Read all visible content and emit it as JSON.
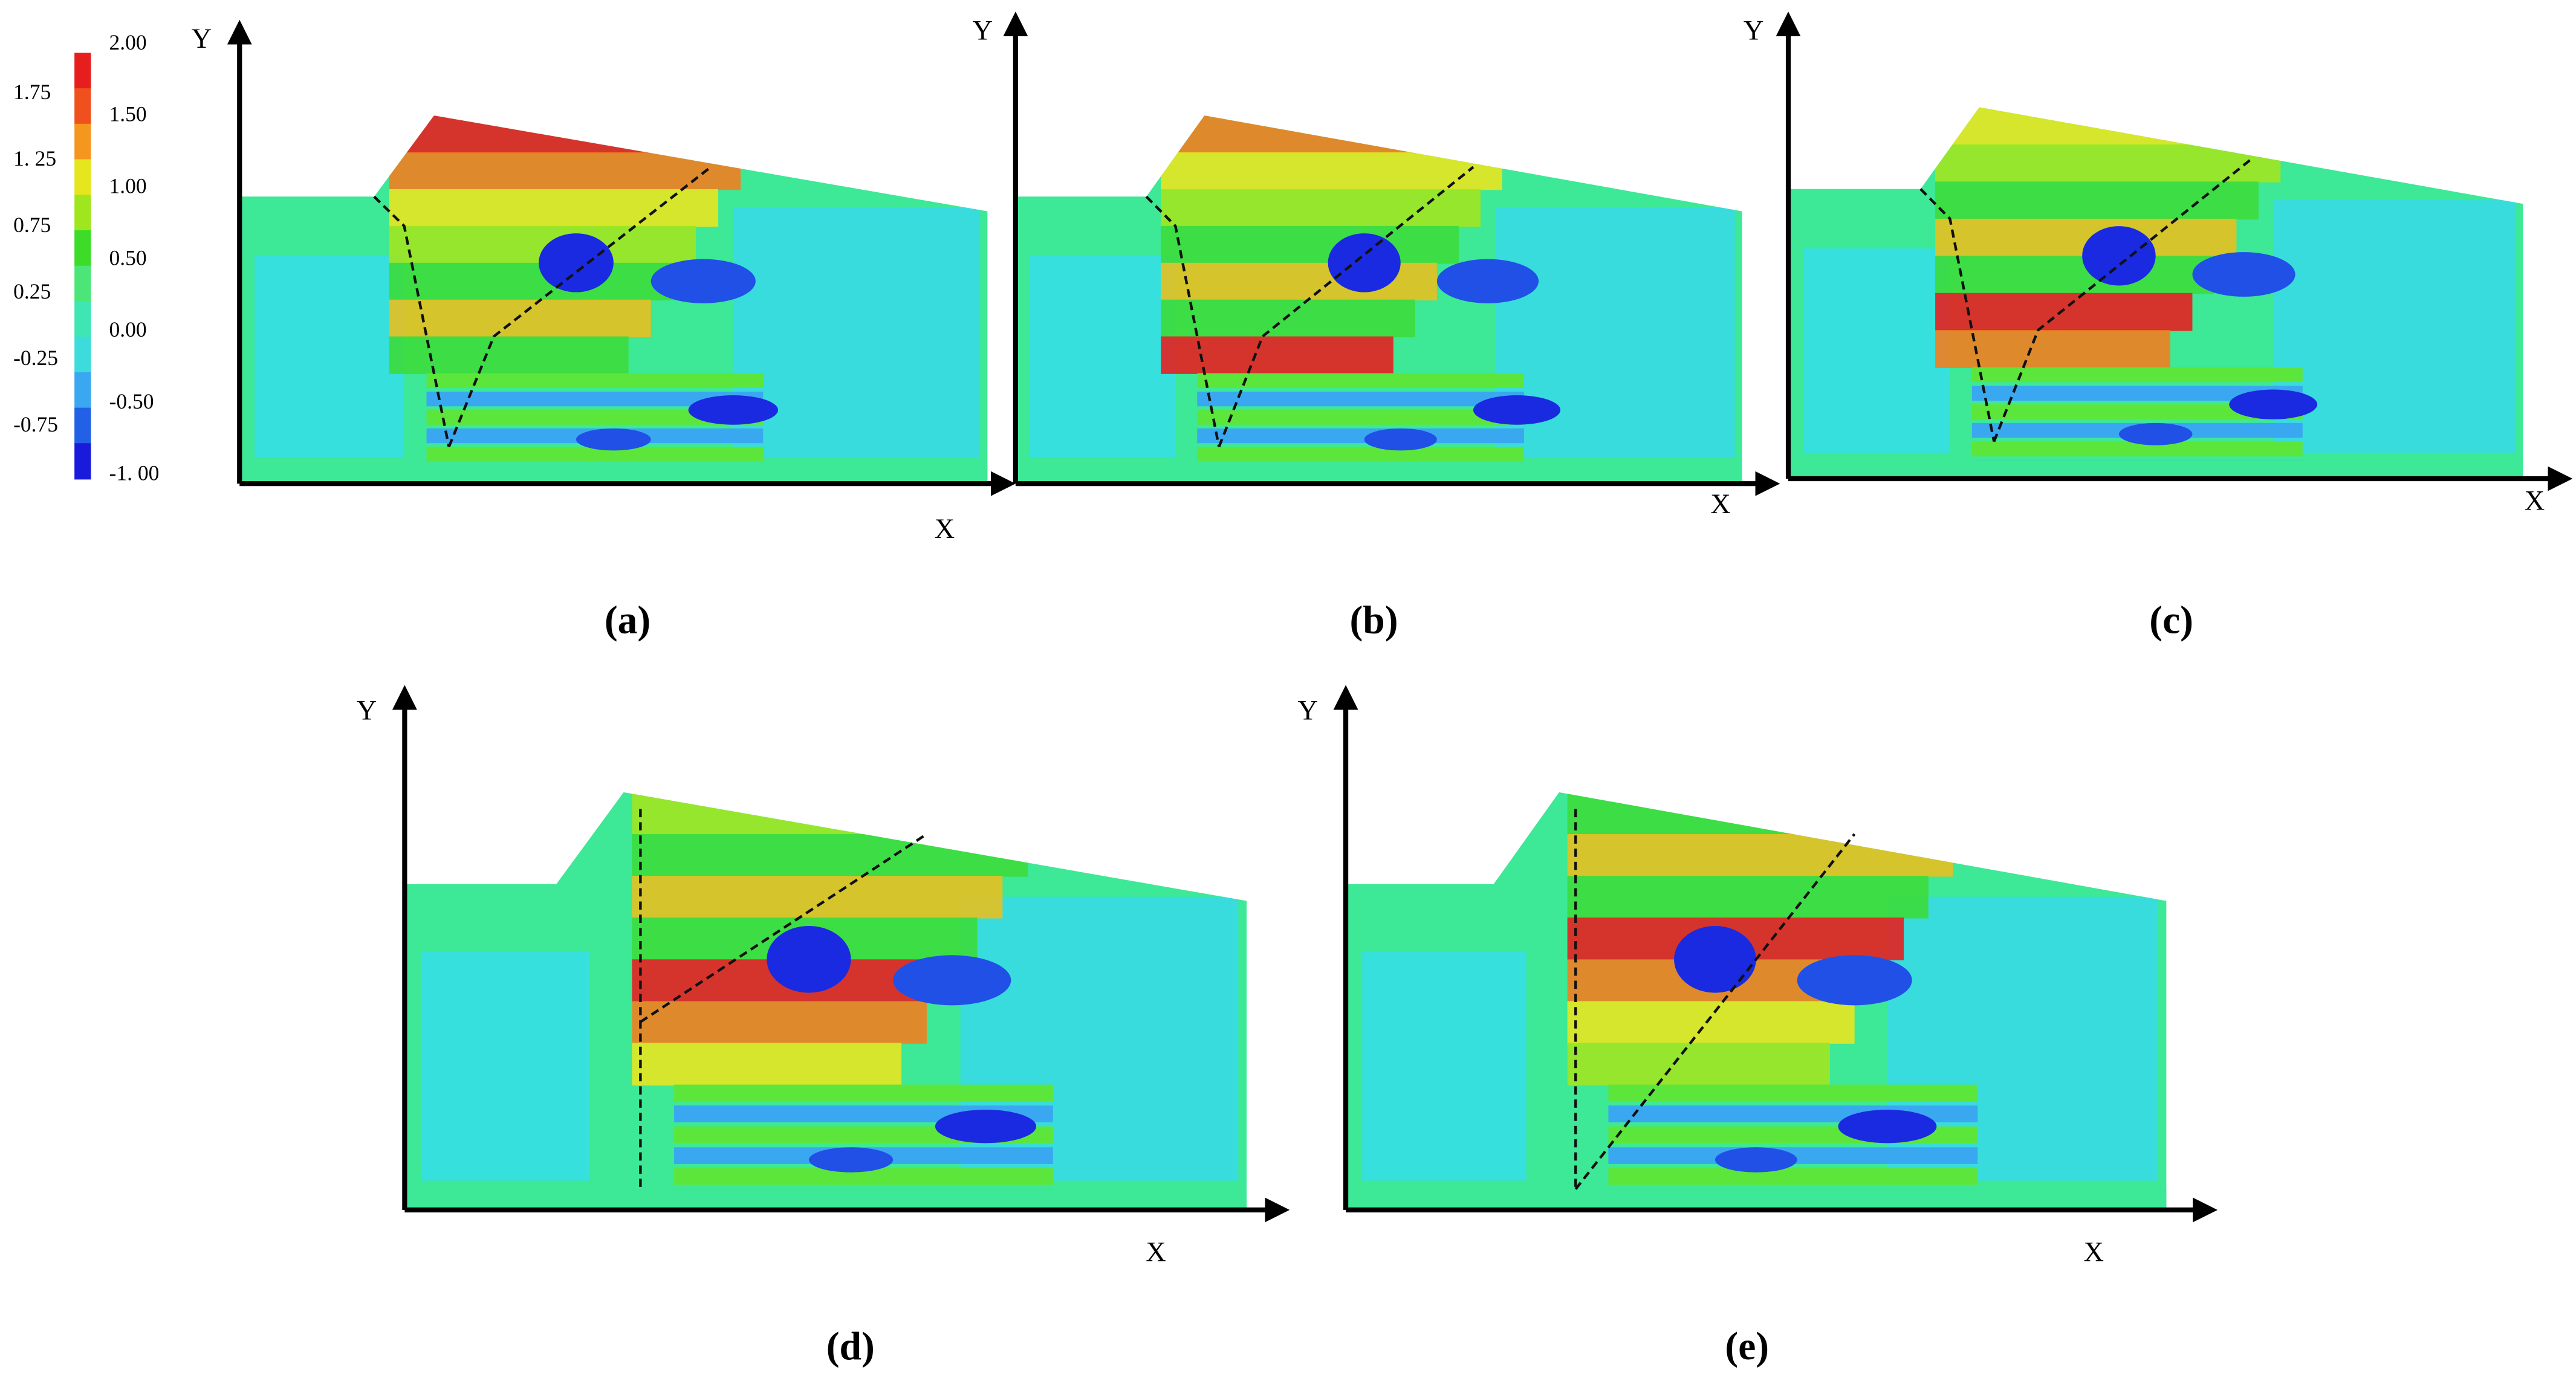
{
  "colorbar": {
    "labels_left": [
      "1.75",
      "1. 25",
      "0.75",
      "0.25",
      "-0.25",
      "-0.75"
    ],
    "labels_right": [
      "2.00",
      "1.50",
      "1.00",
      "0.50",
      "0.00",
      "-0.50",
      "-1. 00"
    ]
  },
  "panels": [
    {
      "caption": "(a)",
      "x_axis": "X",
      "y_axis": "Y"
    },
    {
      "caption": "(b)",
      "x_axis": "X",
      "y_axis": "Y"
    },
    {
      "caption": "(c)",
      "x_axis": "X",
      "y_axis": "Y"
    },
    {
      "caption": "(d)",
      "x_axis": "X",
      "y_axis": "Y"
    },
    {
      "caption": "(e)",
      "x_axis": "X",
      "y_axis": "Y"
    }
  ]
}
